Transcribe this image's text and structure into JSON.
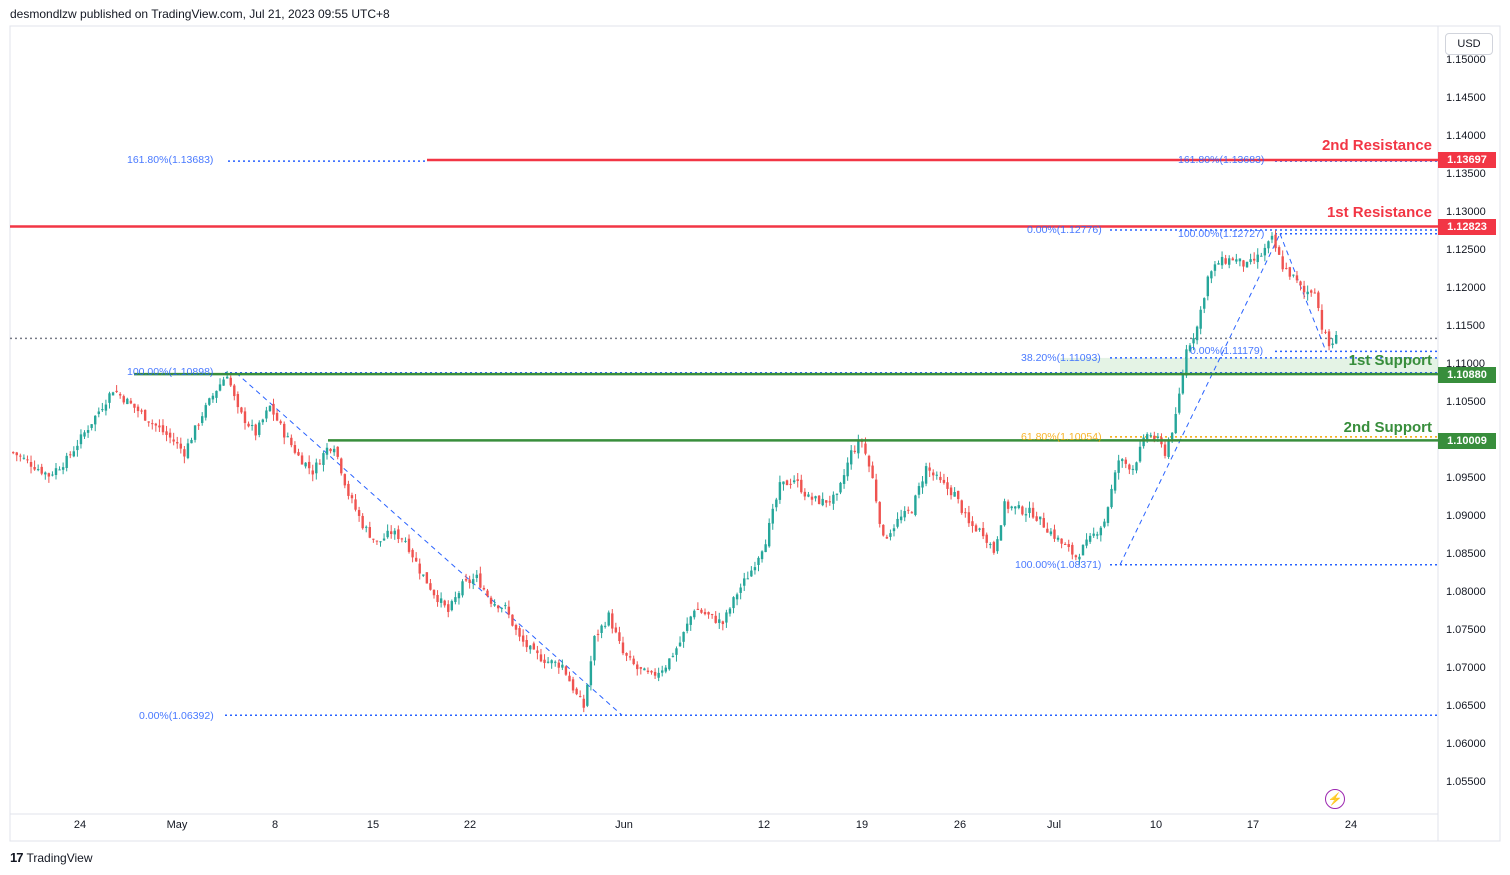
{
  "header": {
    "publisher": "desmondlzw published on TradingView.com, Jul 21, 2023 09:55 UTC+8"
  },
  "footer": {
    "logo": "17",
    "brand": "TradingView"
  },
  "currency": "USD",
  "colors": {
    "resistance": "#f23645",
    "support": "#388e3c",
    "fib": "#2962ff",
    "fib_orange": "#f7a600",
    "up": "#26a69a",
    "down": "#ef5350"
  },
  "levels": {
    "r2": {
      "label": "2nd Resistance",
      "price": 1.13697,
      "tag": "1.13697"
    },
    "r1": {
      "label": "1st Resistance",
      "price": 1.12823,
      "tag": "1.12823"
    },
    "s1": {
      "label": "1st Support",
      "price": 1.1088,
      "tag": "1.10880"
    },
    "s2": {
      "label": "2nd Support",
      "price": 1.10009,
      "tag": "1.10009"
    }
  },
  "fib_labels": {
    "f1": "161.80%(1.13683)",
    "f2": "100.00%(1.10898)",
    "f3": "0.00%(1.06392)",
    "f4": "0.00%(1.12776)",
    "f5": "100.00%(1.12727)",
    "f6": "161.80%(1.13683)",
    "f7": "0.00%(1.11179)",
    "f8": "38.20%(1.11093)",
    "f9": "61.80%(1.10054)",
    "f10": "100.00%(1.08371)"
  },
  "chart_data": {
    "type": "candlestick",
    "y_axis": {
      "ticks": [
        "1.15000",
        "1.14500",
        "1.14000",
        "1.13500",
        "1.13000",
        "1.12500",
        "1.12000",
        "1.11500",
        "1.11000",
        "1.10500",
        "1.10000",
        "1.09500",
        "1.09000",
        "1.08500",
        "1.08000",
        "1.07500",
        "1.07000",
        "1.06500",
        "1.06000",
        "1.05500"
      ],
      "ylim": [
        1.0535,
        1.1515
      ]
    },
    "x_axis": {
      "ticks": [
        "24",
        "May",
        "8",
        "15",
        "22",
        "Jun",
        "12",
        "19",
        "26",
        "Jul",
        "10",
        "17",
        "24"
      ]
    },
    "last_price": 1.1135,
    "key_closes": [
      [
        0,
        1.0985
      ],
      [
        10,
        1.0955
      ],
      [
        15,
        1.0975
      ],
      [
        22,
        1.1025
      ],
      [
        28,
        1.1068
      ],
      [
        35,
        1.104
      ],
      [
        40,
        1.102
      ],
      [
        45,
        1.1
      ],
      [
        48,
        1.0985
      ],
      [
        53,
        1.1035
      ],
      [
        57,
        1.1068
      ],
      [
        60,
        1.1089
      ],
      [
        63,
        1.104
      ],
      [
        68,
        1.101
      ],
      [
        72,
        1.1045
      ],
      [
        76,
        1.101
      ],
      [
        80,
        1.098
      ],
      [
        84,
        1.096
      ],
      [
        88,
        1.099
      ],
      [
        90,
        1.0995
      ],
      [
        94,
        1.093
      ],
      [
        98,
        1.089
      ],
      [
        102,
        1.0865
      ],
      [
        106,
        1.088
      ],
      [
        110,
        1.087
      ],
      [
        114,
        1.083
      ],
      [
        118,
        1.08
      ],
      [
        122,
        1.0775
      ],
      [
        126,
        1.081
      ],
      [
        130,
        1.082
      ],
      [
        134,
        1.079
      ],
      [
        138,
        1.078
      ],
      [
        142,
        1.074
      ],
      [
        146,
        1.072
      ],
      [
        150,
        1.071
      ],
      [
        154,
        1.0705
      ],
      [
        158,
        1.0665
      ],
      [
        160,
        1.065
      ],
      [
        163,
        1.074
      ],
      [
        167,
        1.077
      ],
      [
        171,
        1.072
      ],
      [
        175,
        1.07
      ],
      [
        179,
        1.069
      ],
      [
        183,
        1.0705
      ],
      [
        187,
        1.0735
      ],
      [
        191,
        1.078
      ],
      [
        195,
        1.077
      ],
      [
        199,
        1.076
      ],
      [
        203,
        1.08
      ],
      [
        207,
        1.083
      ],
      [
        211,
        1.087
      ],
      [
        215,
        1.094
      ],
      [
        219,
        1.095
      ],
      [
        223,
        1.0925
      ],
      [
        227,
        1.092
      ],
      [
        231,
        1.0925
      ],
      [
        235,
        1.0985
      ],
      [
        238,
        1.1
      ],
      [
        241,
        1.095
      ],
      [
        244,
        1.087
      ],
      [
        248,
        1.0895
      ],
      [
        252,
        1.091
      ],
      [
        256,
        1.0965
      ],
      [
        260,
        1.0945
      ],
      [
        264,
        1.093
      ],
      [
        268,
        1.089
      ],
      [
        272,
        1.088
      ],
      [
        275,
        1.0855
      ],
      [
        278,
        1.0915
      ],
      [
        282,
        1.091
      ],
      [
        286,
        1.0905
      ],
      [
        290,
        1.0885
      ],
      [
        294,
        1.0865
      ],
      [
        298,
        1.0848
      ],
      [
        302,
        1.087
      ],
      [
        306,
        1.0895
      ],
      [
        310,
        1.0975
      ],
      [
        314,
        1.0965
      ],
      [
        318,
        1.101
      ],
      [
        321,
        1.1
      ],
      [
        323,
        1.0985
      ],
      [
        326,
        1.103
      ],
      [
        329,
        1.112
      ],
      [
        332,
        1.115
      ],
      [
        335,
        1.1215
      ],
      [
        338,
        1.1235
      ],
      [
        342,
        1.124
      ],
      [
        346,
        1.123
      ],
      [
        350,
        1.1245
      ],
      [
        353,
        1.1265
      ],
      [
        356,
        1.123
      ],
      [
        359,
        1.1215
      ],
      [
        362,
        1.1195
      ],
      [
        365,
        1.12
      ],
      [
        367,
        1.115
      ],
      [
        369,
        1.1125
      ],
      [
        371,
        1.1135
      ]
    ]
  }
}
